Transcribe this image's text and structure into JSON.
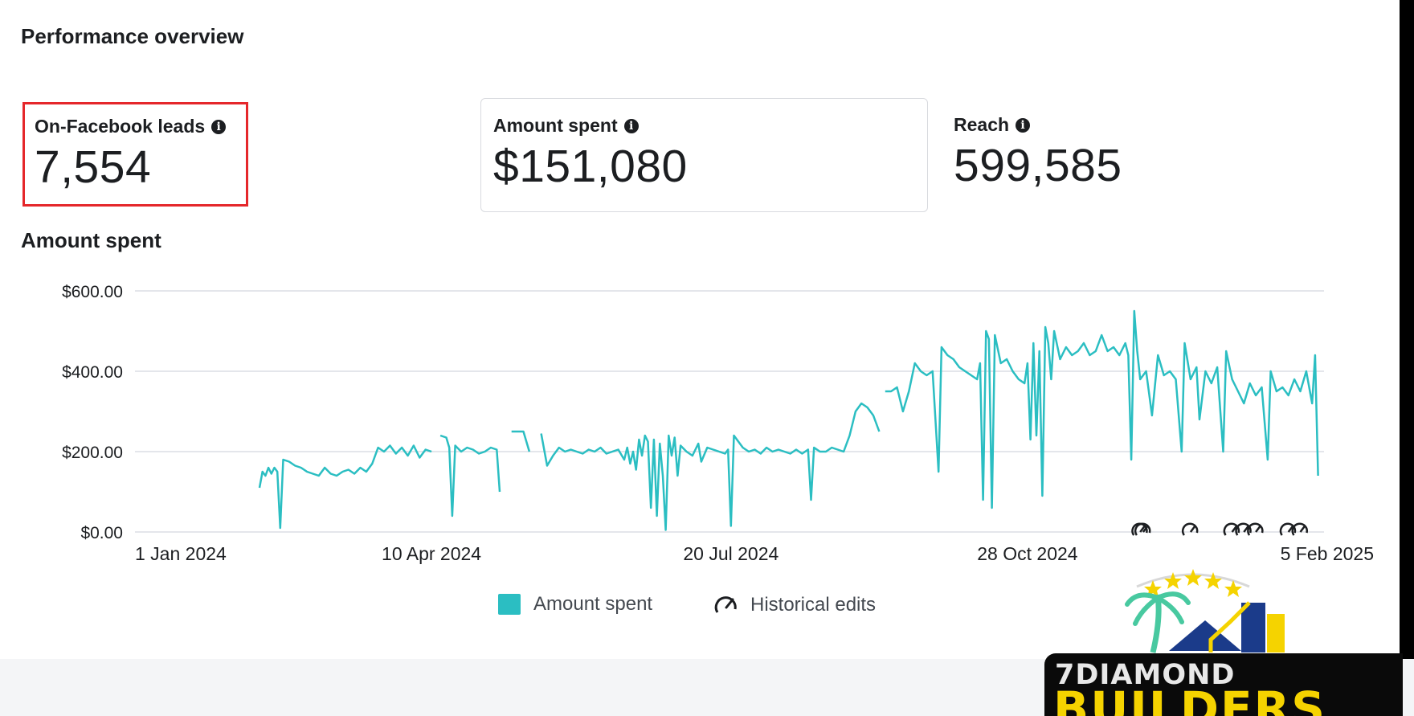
{
  "header": {
    "title": "Performance overview"
  },
  "metrics": {
    "leads": {
      "label": "On-Facebook leads",
      "value": "7,554"
    },
    "spent": {
      "label": "Amount spent",
      "value": "$151,080"
    },
    "reach": {
      "label": "Reach",
      "value": "599,585"
    }
  },
  "chart_title": "Amount spent",
  "legend": {
    "series": "Amount spent",
    "edits": "Historical edits"
  },
  "logo": {
    "name": "7DIAMOND",
    "sub": "BUILDERS"
  },
  "colors": {
    "series": "#2bbec2",
    "highlight": "#e5272b",
    "logo_text": "#f5d300"
  },
  "icons": {
    "info": "info-icon",
    "edits": "gauge-edit-icon"
  },
  "chart_data": {
    "type": "line",
    "title": "Amount spent",
    "xlabel": "",
    "ylabel": "",
    "ylim": [
      0,
      600
    ],
    "y_ticks": [
      "$0.00",
      "$200.00",
      "$400.00",
      "$600.00"
    ],
    "x_ticks": [
      {
        "date": "2024-01-01",
        "label": "1 Jan 2024"
      },
      {
        "date": "2024-04-10",
        "label": "10 Apr 2024"
      },
      {
        "date": "2024-07-20",
        "label": "20 Jul 2024"
      },
      {
        "date": "2024-10-28",
        "label": "28 Oct 2024"
      },
      {
        "date": "2025-02-05",
        "label": "5 Feb 2025"
      }
    ],
    "grid": true,
    "legend_position": "bottom-center",
    "series": [
      {
        "name": "Amount spent",
        "color": "#2bbec2",
        "segments": [
          [
            [
              "2024-02-12",
              110
            ],
            [
              "2024-02-13",
              150
            ],
            [
              "2024-02-14",
              140
            ],
            [
              "2024-02-15",
              160
            ],
            [
              "2024-02-16",
              145
            ],
            [
              "2024-02-17",
              160
            ],
            [
              "2024-02-18",
              150
            ],
            [
              "2024-02-19",
              10
            ],
            [
              "2024-02-20",
              180
            ],
            [
              "2024-02-22",
              175
            ],
            [
              "2024-02-24",
              165
            ],
            [
              "2024-02-26",
              160
            ],
            [
              "2024-02-28",
              150
            ],
            [
              "2024-03-01",
              145
            ],
            [
              "2024-03-03",
              140
            ],
            [
              "2024-03-05",
              160
            ],
            [
              "2024-03-07",
              145
            ],
            [
              "2024-03-09",
              140
            ],
            [
              "2024-03-11",
              150
            ],
            [
              "2024-03-13",
              155
            ],
            [
              "2024-03-15",
              145
            ],
            [
              "2024-03-17",
              160
            ],
            [
              "2024-03-19",
              150
            ],
            [
              "2024-03-21",
              170
            ],
            [
              "2024-03-23",
              210
            ],
            [
              "2024-03-25",
              200
            ],
            [
              "2024-03-27",
              215
            ],
            [
              "2024-03-29",
              195
            ],
            [
              "2024-03-31",
              210
            ],
            [
              "2024-04-02",
              190
            ],
            [
              "2024-04-04",
              215
            ],
            [
              "2024-04-06",
              185
            ],
            [
              "2024-04-08",
              205
            ],
            [
              "2024-04-10",
              200
            ]
          ],
          [
            [
              "2024-04-13",
              240
            ],
            [
              "2024-04-15",
              235
            ],
            [
              "2024-04-16",
              210
            ],
            [
              "2024-04-17",
              40
            ],
            [
              "2024-04-18",
              215
            ],
            [
              "2024-04-20",
              200
            ],
            [
              "2024-04-22",
              210
            ],
            [
              "2024-04-24",
              205
            ],
            [
              "2024-04-26",
              195
            ],
            [
              "2024-04-28",
              200
            ],
            [
              "2024-04-30",
              210
            ],
            [
              "2024-05-02",
              205
            ],
            [
              "2024-05-03",
              100
            ]
          ],
          [
            [
              "2024-05-07",
              250
            ],
            [
              "2024-05-09",
              250
            ],
            [
              "2024-05-11",
              250
            ],
            [
              "2024-05-13",
              200
            ]
          ],
          [
            [
              "2024-05-17",
              245
            ],
            [
              "2024-05-19",
              165
            ],
            [
              "2024-05-21",
              190
            ],
            [
              "2024-05-23",
              210
            ],
            [
              "2024-05-25",
              200
            ],
            [
              "2024-05-27",
              205
            ],
            [
              "2024-05-29",
              200
            ],
            [
              "2024-05-31",
              195
            ],
            [
              "2024-06-02",
              205
            ],
            [
              "2024-06-04",
              200
            ],
            [
              "2024-06-06",
              210
            ],
            [
              "2024-06-08",
              195
            ],
            [
              "2024-06-10",
              200
            ],
            [
              "2024-06-12",
              205
            ],
            [
              "2024-06-14",
              180
            ],
            [
              "2024-06-15",
              210
            ],
            [
              "2024-06-16",
              170
            ],
            [
              "2024-06-17",
              200
            ],
            [
              "2024-06-18",
              155
            ],
            [
              "2024-06-19",
              230
            ],
            [
              "2024-06-20",
              190
            ],
            [
              "2024-06-21",
              240
            ],
            [
              "2024-06-22",
              225
            ],
            [
              "2024-06-23",
              60
            ],
            [
              "2024-06-24",
              230
            ],
            [
              "2024-06-25",
              40
            ],
            [
              "2024-06-26",
              220
            ],
            [
              "2024-06-27",
              140
            ],
            [
              "2024-06-28",
              5
            ],
            [
              "2024-06-29",
              240
            ],
            [
              "2024-06-30",
              190
            ],
            [
              "2024-07-01",
              235
            ],
            [
              "2024-07-02",
              140
            ],
            [
              "2024-07-03",
              215
            ],
            [
              "2024-07-05",
              200
            ],
            [
              "2024-07-07",
              190
            ],
            [
              "2024-07-09",
              220
            ],
            [
              "2024-07-10",
              175
            ],
            [
              "2024-07-12",
              210
            ],
            [
              "2024-07-14",
              205
            ],
            [
              "2024-07-16",
              200
            ],
            [
              "2024-07-18",
              195
            ],
            [
              "2024-07-19",
              205
            ],
            [
              "2024-07-20",
              15
            ],
            [
              "2024-07-21",
              240
            ],
            [
              "2024-07-22",
              230
            ],
            [
              "2024-07-24",
              210
            ],
            [
              "2024-07-26",
              200
            ],
            [
              "2024-07-28",
              205
            ],
            [
              "2024-07-30",
              195
            ],
            [
              "2024-08-01",
              210
            ],
            [
              "2024-08-03",
              200
            ],
            [
              "2024-08-05",
              205
            ],
            [
              "2024-08-07",
              200
            ],
            [
              "2024-08-09",
              195
            ],
            [
              "2024-08-11",
              205
            ],
            [
              "2024-08-13",
              195
            ],
            [
              "2024-08-15",
              205
            ],
            [
              "2024-08-16",
              80
            ],
            [
              "2024-08-17",
              210
            ],
            [
              "2024-08-19",
              200
            ],
            [
              "2024-08-21",
              200
            ],
            [
              "2024-08-23",
              210
            ],
            [
              "2024-08-25",
              205
            ],
            [
              "2024-08-27",
              200
            ],
            [
              "2024-08-29",
              240
            ],
            [
              "2024-08-31",
              300
            ],
            [
              "2024-09-02",
              320
            ],
            [
              "2024-09-04",
              310
            ],
            [
              "2024-09-06",
              290
            ],
            [
              "2024-09-08",
              250
            ]
          ],
          [
            [
              "2024-09-10",
              350
            ],
            [
              "2024-09-12",
              350
            ],
            [
              "2024-09-14",
              360
            ],
            [
              "2024-09-16",
              300
            ],
            [
              "2024-09-18",
              350
            ],
            [
              "2024-09-20",
              420
            ],
            [
              "2024-09-22",
              400
            ],
            [
              "2024-09-24",
              390
            ],
            [
              "2024-09-26",
              400
            ],
            [
              "2024-09-28",
              150
            ],
            [
              "2024-09-29",
              460
            ],
            [
              "2024-10-01",
              440
            ],
            [
              "2024-10-03",
              430
            ],
            [
              "2024-10-05",
              410
            ],
            [
              "2024-10-07",
              400
            ],
            [
              "2024-10-09",
              390
            ],
            [
              "2024-10-11",
              380
            ],
            [
              "2024-10-12",
              420
            ],
            [
              "2024-10-13",
              80
            ],
            [
              "2024-10-14",
              500
            ],
            [
              "2024-10-15",
              480
            ],
            [
              "2024-10-16",
              60
            ],
            [
              "2024-10-17",
              490
            ],
            [
              "2024-10-19",
              420
            ],
            [
              "2024-10-21",
              430
            ],
            [
              "2024-10-23",
              400
            ],
            [
              "2024-10-25",
              380
            ],
            [
              "2024-10-27",
              370
            ],
            [
              "2024-10-28",
              420
            ],
            [
              "2024-10-29",
              230
            ],
            [
              "2024-10-30",
              470
            ],
            [
              "2024-10-31",
              240
            ],
            [
              "2024-11-01",
              450
            ],
            [
              "2024-11-02",
              90
            ],
            [
              "2024-11-03",
              510
            ],
            [
              "2024-11-04",
              470
            ],
            [
              "2024-11-05",
              380
            ],
            [
              "2024-11-06",
              500
            ],
            [
              "2024-11-08",
              430
            ],
            [
              "2024-11-10",
              460
            ],
            [
              "2024-11-12",
              440
            ],
            [
              "2024-11-14",
              450
            ],
            [
              "2024-11-16",
              470
            ],
            [
              "2024-11-18",
              440
            ],
            [
              "2024-11-20",
              450
            ],
            [
              "2024-11-22",
              490
            ],
            [
              "2024-11-24",
              450
            ],
            [
              "2024-11-26",
              460
            ],
            [
              "2024-11-28",
              440
            ],
            [
              "2024-11-30",
              470
            ],
            [
              "2024-12-01",
              440
            ],
            [
              "2024-12-02",
              180
            ],
            [
              "2024-12-03",
              550
            ],
            [
              "2024-12-04",
              450
            ],
            [
              "2024-12-05",
              380
            ],
            [
              "2024-12-07",
              400
            ],
            [
              "2024-12-09",
              290
            ],
            [
              "2024-12-11",
              440
            ],
            [
              "2024-12-13",
              390
            ],
            [
              "2024-12-15",
              400
            ],
            [
              "2024-12-17",
              380
            ],
            [
              "2024-12-19",
              200
            ],
            [
              "2024-12-20",
              470
            ],
            [
              "2024-12-22",
              380
            ],
            [
              "2024-12-24",
              410
            ],
            [
              "2024-12-25",
              280
            ],
            [
              "2024-12-27",
              400
            ],
            [
              "2024-12-29",
              370
            ],
            [
              "2024-12-31",
              410
            ],
            [
              "2025-01-02",
              200
            ],
            [
              "2025-01-03",
              450
            ],
            [
              "2025-01-05",
              380
            ],
            [
              "2025-01-07",
              350
            ],
            [
              "2025-01-09",
              320
            ],
            [
              "2025-01-11",
              370
            ],
            [
              "2025-01-13",
              340
            ],
            [
              "2025-01-15",
              360
            ],
            [
              "2025-01-17",
              180
            ],
            [
              "2025-01-18",
              400
            ],
            [
              "2025-01-20",
              350
            ],
            [
              "2025-01-22",
              360
            ],
            [
              "2025-01-24",
              340
            ],
            [
              "2025-01-26",
              380
            ],
            [
              "2025-01-28",
              350
            ],
            [
              "2025-01-30",
              400
            ],
            [
              "2025-02-01",
              320
            ],
            [
              "2025-02-02",
              440
            ],
            [
              "2025-02-03",
              140
            ]
          ]
        ]
      }
    ],
    "historical_edit_dates": [
      "2024-12-05",
      "2024-12-06",
      "2024-12-22",
      "2025-01-05",
      "2025-01-09",
      "2025-01-13",
      "2025-01-24",
      "2025-01-28"
    ]
  }
}
